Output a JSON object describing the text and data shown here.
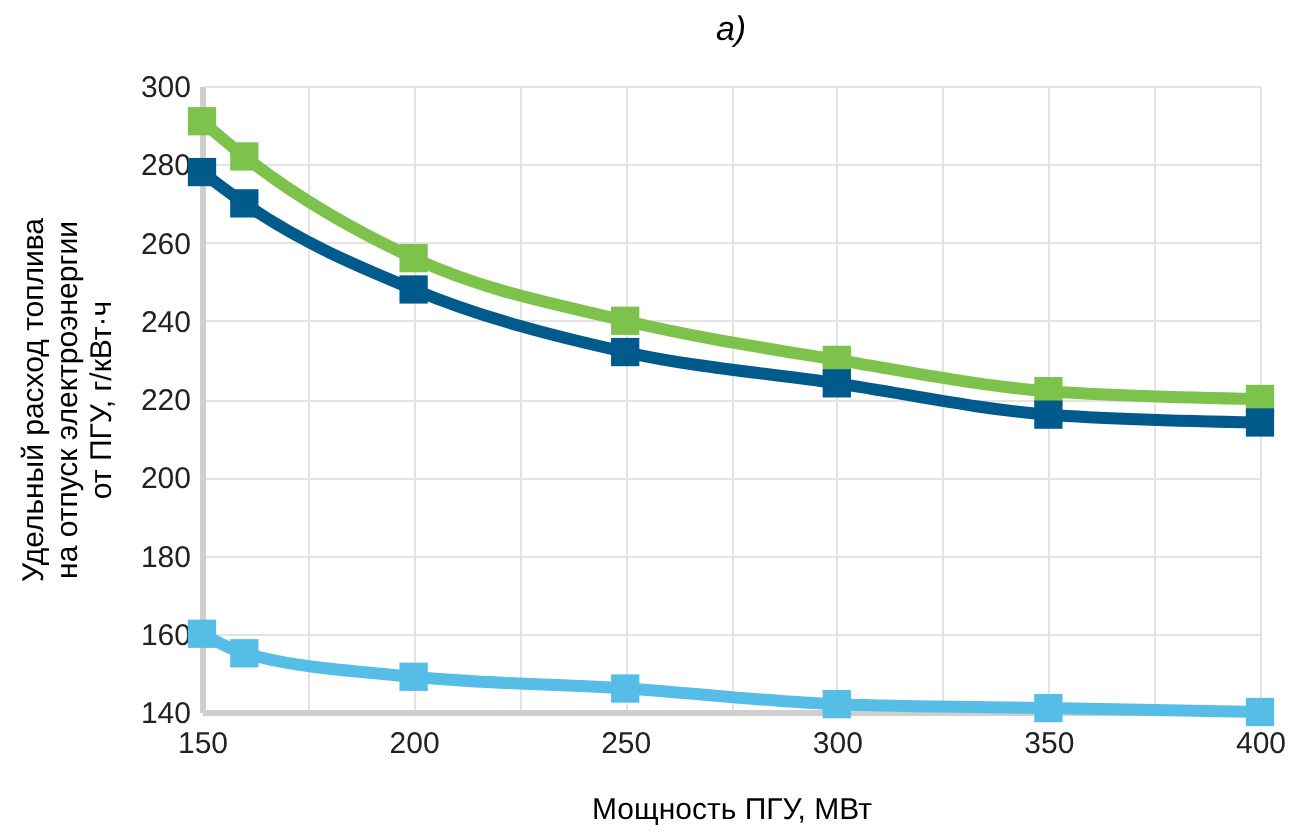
{
  "chart_data": {
    "type": "line",
    "title": "а)",
    "xlabel": "Мощность ПГУ, МВт",
    "ylabel": "Удельный расход топлива\nна отпуск электроэнергии\nот ПГУ, г/кВт·ч",
    "x": [
      150,
      160,
      200,
      250,
      300,
      350,
      400
    ],
    "series": [
      {
        "color": "#7dc24b",
        "values": [
          291,
          282,
          256,
          240,
          230,
          222,
          220
        ]
      },
      {
        "color": "#005a8c",
        "values": [
          278,
          270,
          248,
          232,
          224,
          216,
          214
        ]
      },
      {
        "color": "#55bde6",
        "values": [
          160,
          155,
          149,
          146,
          142,
          141,
          140
        ]
      }
    ],
    "xlim": [
      150,
      400
    ],
    "xticks": [
      150,
      {
        "value": 175,
        "label": null
      },
      200,
      {
        "value": 225,
        "label": null
      },
      250,
      {
        "value": 275,
        "label": null
      },
      300,
      {
        "value": 325,
        "label": null
      },
      350,
      {
        "value": 375,
        "label": null
      },
      400
    ],
    "ylim": [
      140,
      300
    ],
    "yticks": [
      140,
      160,
      180,
      200,
      220,
      240,
      260,
      280,
      300
    ],
    "grid": true,
    "marker": "square",
    "legend": false
  }
}
